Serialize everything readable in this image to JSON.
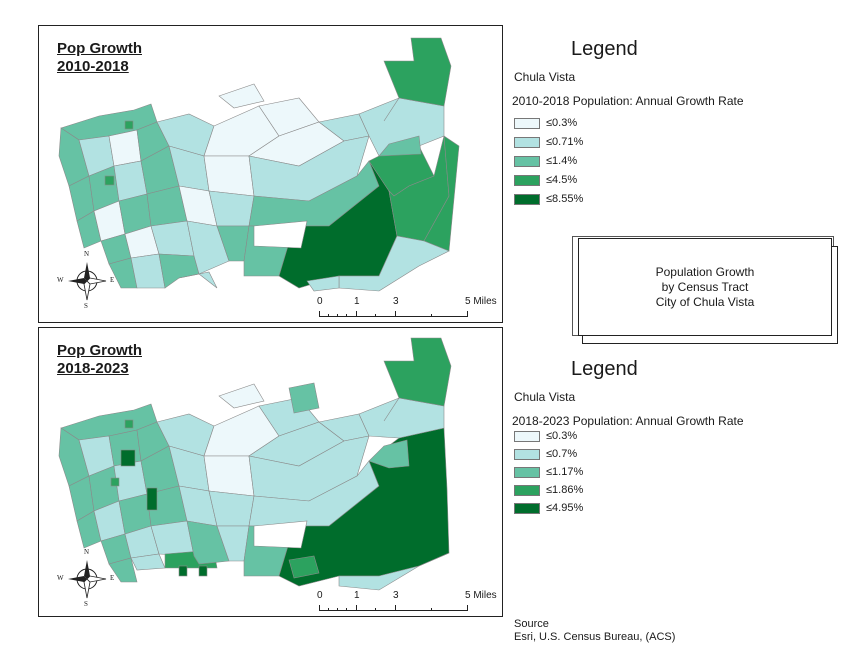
{
  "maps": [
    {
      "title_line1": "Pop Growth",
      "title_line2": "2010-2018",
      "legend": {
        "heading": "Legend",
        "area": "Chula Vista",
        "field": "2010-2018 Population: Annual Growth Rate",
        "classes": [
          {
            "label": "≤0.3%",
            "color": "#edf8fb"
          },
          {
            "label": "≤0.71%",
            "color": "#b2e2e2"
          },
          {
            "label": "≤1.4%",
            "color": "#66c2a4"
          },
          {
            "label": "≤4.5%",
            "color": "#2ca25f"
          },
          {
            "label": "≤8.55%",
            "color": "#006d2c"
          }
        ]
      }
    },
    {
      "title_line1": "Pop Growth",
      "title_line2": "2018-2023",
      "legend": {
        "heading": "Legend",
        "area": "Chula Vista",
        "field": "2018-2023 Population: Annual Growth Rate",
        "classes": [
          {
            "label": "≤0.3%",
            "color": "#edf8fb"
          },
          {
            "label": "≤0.7%",
            "color": "#b2e2e2"
          },
          {
            "label": "≤1.17%",
            "color": "#66c2a4"
          },
          {
            "label": "≤1.86%",
            "color": "#2ca25f"
          },
          {
            "label": "≤4.95%",
            "color": "#006d2c"
          }
        ]
      }
    }
  ],
  "scale_bar": {
    "l0": "0",
    "l1": "1",
    "l3": "3",
    "l5": "5 Miles"
  },
  "north_arrow": {
    "n": "N",
    "s": "S",
    "e": "E",
    "w": "W",
    "icon": "compass-rose-icon"
  },
  "title_box": {
    "line1": "Population Growth",
    "line2": "by Census Tract",
    "line3": "City of Chula Vista"
  },
  "source": {
    "label": "Source",
    "text": "Esri, U.S. Census Bureau, (ACS)"
  }
}
